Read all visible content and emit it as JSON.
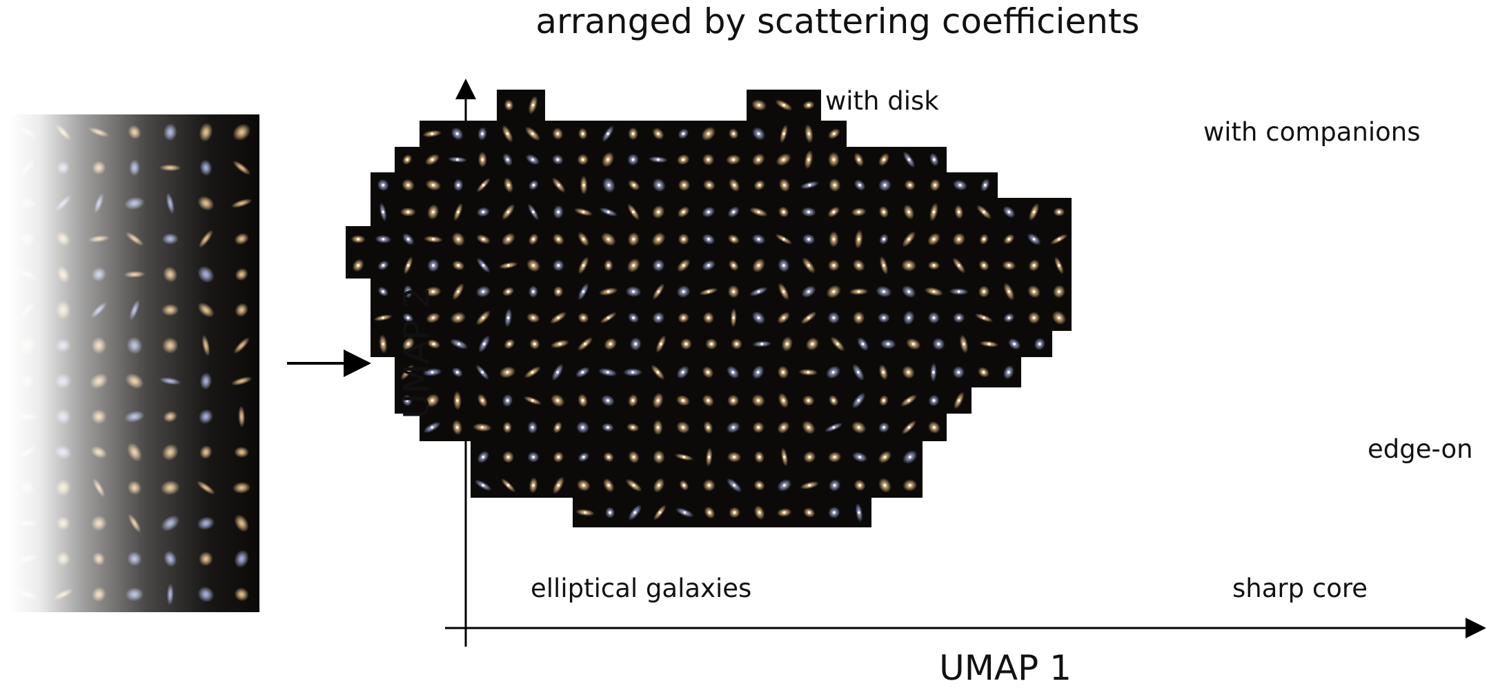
{
  "title": "arranged by scattering coefficients",
  "axes": {
    "x_label": "UMAP 1",
    "y_label": "UMAP 2"
  },
  "annotations": {
    "with_disk": "with disk",
    "with_companions": "with companions",
    "edge_on": "edge-on",
    "elliptical": "elliptical galaxies",
    "sharp_core": "sharp core"
  },
  "colors": {
    "tile_background": "#0c0a08",
    "galaxy_warm": "#f2c98a",
    "galaxy_cool": "#a9b4e6",
    "axis": "#000000"
  }
}
